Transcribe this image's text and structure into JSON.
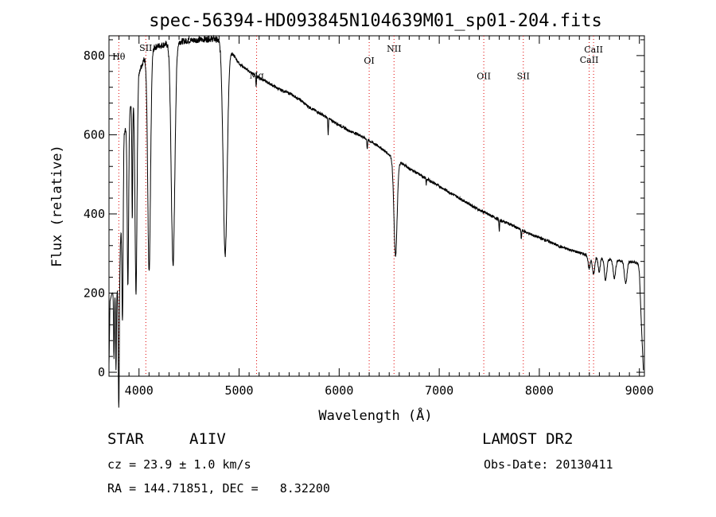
{
  "chart_data": {
    "type": "line",
    "title": "spec-56394-HD093845N104639M01_sp01-204.fits",
    "xlabel": "Wavelength (Å)",
    "ylabel": "Flux (relative)",
    "xlim": [
      3700,
      9050
    ],
    "ylim": [
      -10,
      850
    ],
    "xticks": [
      4000,
      5000,
      6000,
      7000,
      8000,
      9000
    ],
    "yticks": [
      0,
      200,
      400,
      600,
      800
    ],
    "grid": false,
    "continuum": {
      "x": [
        3700,
        3710,
        3730,
        3760,
        3800,
        3850,
        3900,
        3950,
        4000,
        4050,
        4100,
        4150,
        4200,
        4300,
        4400,
        4500,
        4600,
        4700,
        4750,
        4800,
        4950,
        5000,
        5100,
        5200,
        5300,
        5400,
        5500,
        5600,
        5700,
        5800,
        5900,
        6000,
        6100,
        6200,
        6300,
        6400,
        6450,
        6500,
        6700,
        6800,
        6900,
        7000,
        7100,
        7200,
        7300,
        7400,
        7500,
        7600,
        7700,
        7800,
        7900,
        8000,
        8100,
        8200,
        8300,
        8400,
        8500,
        8600,
        8700,
        8800,
        8900,
        8950,
        8980,
        8990,
        9000,
        9020,
        9040
      ],
      "y": [
        20,
        180,
        200,
        205,
        210,
        600,
        650,
        700,
        760,
        790,
        810,
        820,
        825,
        830,
        835,
        838,
        840,
        842,
        842,
        838,
        800,
        780,
        760,
        745,
        730,
        715,
        705,
        690,
        670,
        655,
        640,
        625,
        610,
        600,
        585,
        570,
        560,
        550,
        515,
        500,
        485,
        470,
        455,
        440,
        425,
        410,
        398,
        385,
        375,
        362,
        350,
        340,
        330,
        318,
        310,
        302,
        295,
        290,
        285,
        282,
        279,
        278,
        275,
        270,
        250,
        120,
        5
      ]
    },
    "absorption_lines": [
      {
        "x": 3750,
        "depth": 170,
        "width": 4
      },
      {
        "x": 3770,
        "depth": 200,
        "width": 4
      },
      {
        "x": 3798,
        "depth": 300,
        "width": 5
      },
      {
        "x": 3835,
        "depth": 350,
        "width": 6
      },
      {
        "x": 3889,
        "depth": 420,
        "width": 7
      },
      {
        "x": 3933,
        "depth": 300,
        "width": 4
      },
      {
        "x": 3970,
        "depth": 520,
        "width": 10
      },
      {
        "x": 4101,
        "depth": 560,
        "width": 14
      },
      {
        "x": 4340,
        "depth": 560,
        "width": 18
      },
      {
        "x": 4861,
        "depth": 525,
        "width": 20
      },
      {
        "x": 5170,
        "depth": 30,
        "width": 3
      },
      {
        "x": 5890,
        "depth": 40,
        "width": 3
      },
      {
        "x": 6280,
        "depth": 25,
        "width": 3
      },
      {
        "x": 6563,
        "depth": 245,
        "width": 16
      },
      {
        "x": 6870,
        "depth": 15,
        "width": 3
      },
      {
        "x": 7600,
        "depth": 30,
        "width": 3
      },
      {
        "x": 7820,
        "depth": 25,
        "width": 3
      },
      {
        "x": 8498,
        "depth": 35,
        "width": 10
      },
      {
        "x": 8542,
        "depth": 45,
        "width": 12
      },
      {
        "x": 8598,
        "depth": 35,
        "width": 10
      },
      {
        "x": 8662,
        "depth": 55,
        "width": 12
      },
      {
        "x": 8750,
        "depth": 45,
        "width": 12
      },
      {
        "x": 8863,
        "depth": 55,
        "width": 13
      }
    ],
    "line_markers": [
      {
        "label": "Hθ",
        "x": 3798,
        "label_y": 790
      },
      {
        "label": "SII",
        "x": 4068,
        "label_y": 812
      },
      {
        "label": "Mg",
        "x": 5175,
        "label_y": 742
      },
      {
        "label": "OI",
        "x": 6300,
        "label_y": 780
      },
      {
        "label": "NII",
        "x": 6548,
        "label_y": 810
      },
      {
        "label": "OII",
        "x": 7445,
        "label_y": 740
      },
      {
        "label": "SII",
        "x": 7840,
        "label_y": 740
      },
      {
        "label": "CaII",
        "x": 8498,
        "label_y": 782
      },
      {
        "label": "CaII",
        "x": 8542,
        "label_y": 808
      }
    ]
  },
  "info": {
    "object_class": "STAR",
    "subclass": "A1IV",
    "survey": "LAMOST DR2",
    "redshift": "cz = 23.9 ± 1.0 km/s",
    "obs_date": "Obs-Date: 20130411",
    "coords": "RA = 144.71851, DEC =   8.32200"
  }
}
